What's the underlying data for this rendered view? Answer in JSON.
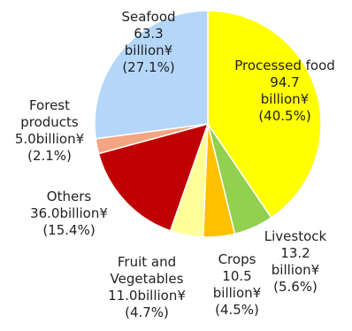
{
  "chart_data": {
    "type": "pie",
    "title": "",
    "unit": "billion¥",
    "start_angle_deg": 0,
    "direction": "clockwise",
    "slice_stroke": "#ffffff",
    "slices": [
      {
        "name": "Processed food",
        "value": 94.7,
        "percent": 40.5,
        "color": "#ffff00",
        "label_lines": [
          "Processed food",
          "94.7",
          "billion¥",
          "(40.5%)"
        ]
      },
      {
        "name": "Livestock",
        "value": 13.2,
        "percent": 5.6,
        "color": "#92d050",
        "label_lines": [
          "Livestock",
          "13.2",
          "billion¥",
          "(5.6%)"
        ]
      },
      {
        "name": "Crops",
        "value": 10.5,
        "percent": 4.5,
        "color": "#ffc000",
        "label_lines": [
          "Crops",
          "10.5",
          "billion¥",
          "(4.5%)"
        ]
      },
      {
        "name": "Fruit and Vegetables",
        "value": 11.0,
        "percent": 4.7,
        "color": "#ffff99",
        "label_lines": [
          "Fruit and",
          "Vegetables",
          "11.0billion¥",
          "(4.7%)"
        ]
      },
      {
        "name": "Others",
        "value": 36.0,
        "percent": 15.4,
        "color": "#c00000",
        "label_lines": [
          "Others",
          "36.0billion¥",
          "(15.4%)"
        ]
      },
      {
        "name": "Forest products",
        "value": 5.0,
        "percent": 2.1,
        "color": "#f4a582",
        "label_lines": [
          "Forest",
          "products",
          "5.0billion¥",
          "(2.1%)"
        ]
      },
      {
        "name": "Seafood",
        "value": 63.3,
        "percent": 27.1,
        "color": "#b4d6f8",
        "label_lines": [
          "Seafood",
          "63.3",
          "billion¥",
          "(27.1%)"
        ]
      }
    ]
  }
}
